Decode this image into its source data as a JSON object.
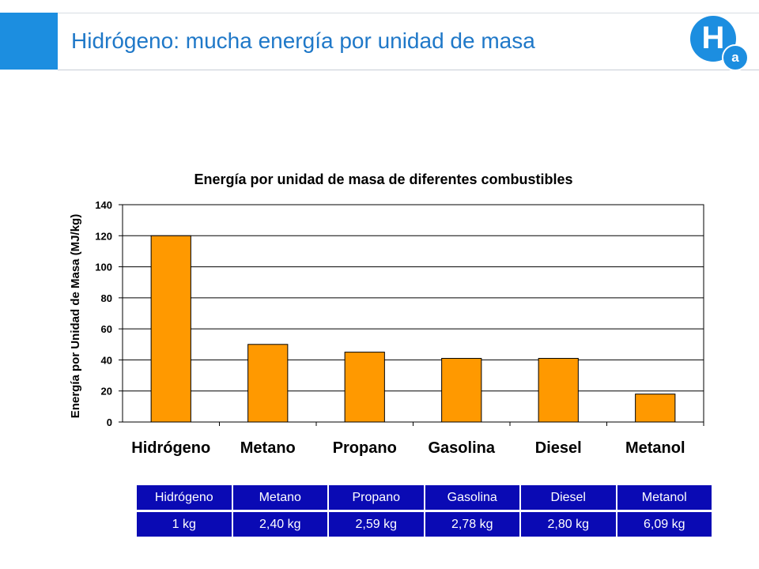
{
  "slide": {
    "title": "Hidrógeno: mucha energía por unidad de masa"
  },
  "logo": {
    "letter": "H",
    "subscript": "a",
    "color": "#1c8ee0"
  },
  "chart_data": {
    "type": "bar",
    "title": "Energía por unidad de masa de diferentes combustibles",
    "xlabel": "",
    "ylabel": "Energía por Unidad de Masa (MJ/kg)",
    "categories": [
      "Hidrógeno",
      "Metano",
      "Propano",
      "Gasolina",
      "Diesel",
      "Metanol"
    ],
    "values": [
      120,
      50,
      45,
      41,
      41,
      18
    ],
    "ylim": [
      0,
      140
    ],
    "yticks": [
      0,
      20,
      40,
      60,
      80,
      100,
      120,
      140
    ],
    "grid": true,
    "legend": "none",
    "bar_color": "#ff9900"
  },
  "mass_table": {
    "fuels": [
      "Hidrógeno",
      "Metano",
      "Propano",
      "Gasolina",
      "Diesel",
      "Metanol"
    ],
    "masses": [
      "1 kg",
      "2,40 kg",
      "2,59 kg",
      "2,78 kg",
      "2,80 kg",
      "6,09 kg"
    ],
    "cell_color": "#0a0ab4"
  }
}
